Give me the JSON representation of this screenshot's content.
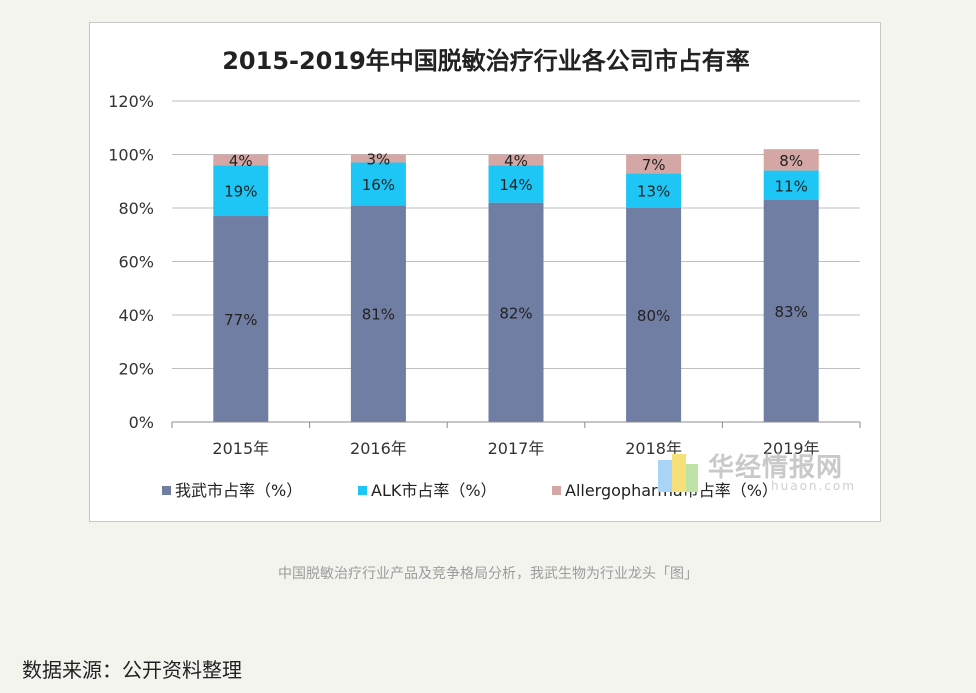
{
  "chart_data": {
    "type": "bar",
    "stacked": true,
    "title": "2015-2019年中国脱敏治疗行业各公司市占有率",
    "categories": [
      "2015年",
      "2016年",
      "2017年",
      "2018年",
      "2019年"
    ],
    "series": [
      {
        "name": "我武市占率（%）",
        "color": "#717ea3",
        "values": [
          77,
          81,
          82,
          80,
          83
        ],
        "labels": [
          "77%",
          "81%",
          "82%",
          "80%",
          "83%"
        ]
      },
      {
        "name": "ALK市占率（%）",
        "color": "#1ec6f5",
        "values": [
          19,
          16,
          14,
          13,
          11
        ],
        "labels": [
          "19%",
          "16%",
          "14%",
          "13%",
          "11%"
        ]
      },
      {
        "name": "Allergopharma市占率（%）",
        "color": "#d5a7a4",
        "values": [
          4,
          3,
          4,
          7,
          8
        ],
        "labels": [
          "4%",
          "3%",
          "4%",
          "7%",
          "8%"
        ]
      }
    ],
    "yticks": [
      "0%",
      "20%",
      "40%",
      "60%",
      "80%",
      "100%",
      "120%"
    ],
    "ylim": [
      0,
      120
    ],
    "grid": true,
    "legend_position": "bottom"
  },
  "watermark": {
    "text": "华经情报网",
    "url": "huaon.com"
  },
  "caption": "中国脱敏治疗行业产品及竞争格局分析，我武生物为行业龙头「图」",
  "source_note": "数据来源：公开资料整理"
}
